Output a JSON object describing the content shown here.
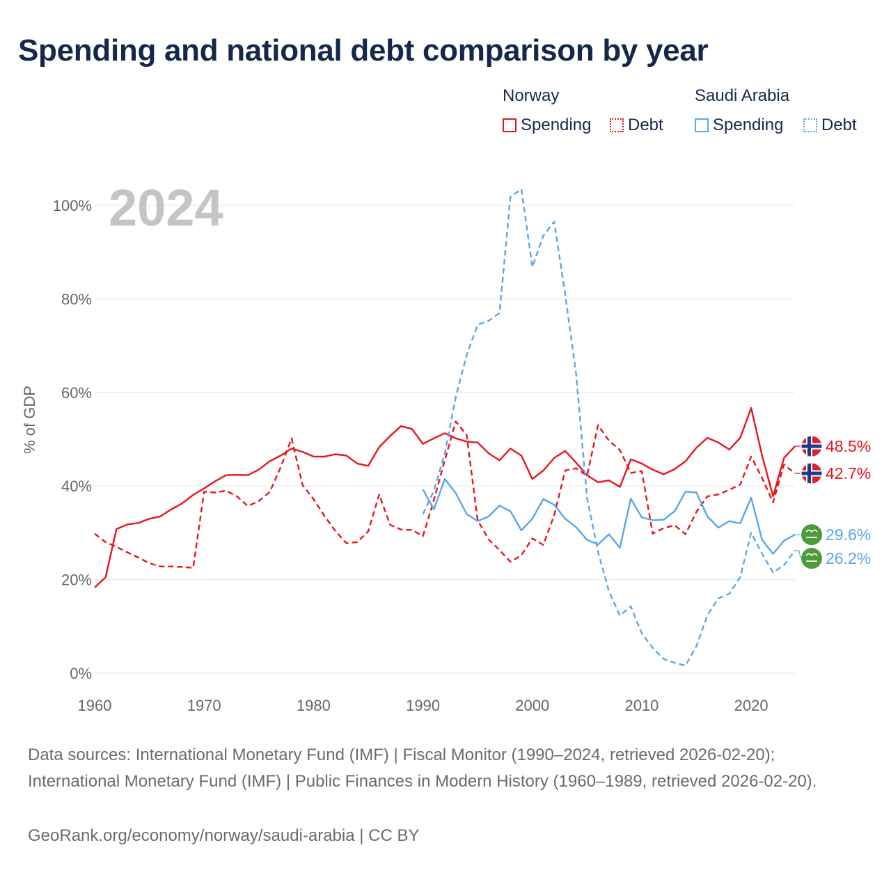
{
  "title": "Spending and national debt comparison by year",
  "legend": {
    "norway": {
      "name": "Norway",
      "spending": "Spending",
      "debt": "Debt"
    },
    "saudi": {
      "name": "Saudi Arabia",
      "spending": "Spending",
      "debt": "Debt"
    }
  },
  "colors": {
    "norway": "#e8141c",
    "saudi": "#5aa6e8",
    "year_watermark": "#c4c4c4",
    "grid": "#e6e6e6",
    "axis_text": "#666666"
  },
  "footer": {
    "sources": "Data sources: International Monetary Fund (IMF) | Fiscal Monitor (1990–2024, retrieved 2026-02-20); International Monetary Fund (IMF) | Public Finances in Modern History (1960–1989, retrieved 2026-02-20).",
    "attribution": "GeoRank.org/economy/norway/saudi-arabia | CC BY"
  },
  "chart_data": {
    "type": "line",
    "year_label": "2024",
    "ylabel": "% of GDP",
    "xlim": [
      1960,
      2024
    ],
    "ylim": [
      0,
      105
    ],
    "x_ticks": [
      1960,
      1970,
      1980,
      1990,
      2000,
      2010,
      2020
    ],
    "y_ticks": [
      0,
      20,
      40,
      60,
      80,
      100
    ],
    "y_tick_labels": [
      "0%",
      "20%",
      "40%",
      "60%",
      "80%",
      "100%"
    ],
    "series": [
      {
        "name": "Norway Spending",
        "country": "norway",
        "style": "solid",
        "start_year": 1960,
        "end_label": "48.5%",
        "values": [
          18.3,
          20.5,
          30.8,
          31.8,
          32.1,
          33.0,
          33.5,
          35.0,
          36.3,
          38.1,
          39.5,
          41.0,
          42.3,
          42.4,
          42.3,
          43.5,
          45.3,
          46.5,
          48.0,
          47.3,
          46.3,
          46.3,
          46.8,
          46.5,
          44.8,
          44.3,
          48.3,
          50.7,
          52.8,
          52.2,
          49.0,
          50.2,
          51.3,
          50.2,
          49.5,
          49.3,
          47.0,
          45.5,
          48.0,
          46.5,
          41.5,
          43.3,
          46.0,
          47.5,
          45.0,
          42.3,
          40.8,
          41.2,
          39.8,
          45.7,
          44.8,
          43.5,
          42.5,
          43.6,
          45.3,
          48.2,
          50.3,
          49.3,
          47.8,
          50.3,
          56.7,
          46.5,
          37.8,
          46.0,
          48.5
        ]
      },
      {
        "name": "Norway Debt",
        "country": "norway",
        "style": "dashed",
        "start_year": 1960,
        "end_label": "42.7%",
        "values": [
          29.8,
          28.0,
          27.0,
          25.8,
          24.7,
          23.5,
          22.8,
          22.8,
          22.7,
          22.5,
          38.8,
          38.6,
          39.0,
          37.8,
          35.7,
          36.8,
          38.7,
          44.0,
          50.2,
          40.2,
          37.2,
          33.6,
          30.4,
          27.8,
          28.0,
          30.3,
          38.2,
          31.7,
          30.7,
          30.6,
          29.3,
          37.0,
          45.5,
          53.8,
          50.9,
          32.7,
          28.6,
          26.3,
          23.8,
          25.2,
          28.8,
          27.4,
          33.8,
          43.3,
          43.8,
          42.2,
          53.0,
          49.7,
          47.7,
          42.8,
          43.2,
          29.8,
          31.0,
          31.6,
          29.7,
          34.5,
          37.8,
          38.2,
          39.2,
          40.3,
          46.3,
          41.7,
          36.5,
          44.6,
          42.7
        ]
      },
      {
        "name": "Saudi Arabia Spending",
        "country": "saudi",
        "style": "solid",
        "start_year": 1990,
        "end_label": "29.6%",
        "values": [
          39.3,
          35.0,
          41.5,
          38.5,
          34.0,
          32.5,
          33.5,
          35.8,
          34.6,
          30.5,
          33.0,
          37.2,
          36.0,
          33.0,
          31.2,
          28.5,
          27.5,
          29.7,
          26.8,
          37.3,
          33.3,
          32.7,
          32.8,
          34.6,
          38.8,
          38.6,
          33.5,
          31.1,
          32.5,
          32.0,
          37.5,
          28.5,
          25.5,
          28.3,
          29.6
        ]
      },
      {
        "name": "Saudi Arabia Debt",
        "country": "saudi",
        "style": "dashed",
        "start_year": 1990,
        "end_label": "26.2%",
        "values": [
          34.0,
          39.0,
          47.0,
          59.0,
          68.0,
          74.5,
          75.3,
          77.0,
          101.8,
          103.5,
          86.8,
          93.5,
          96.5,
          81.0,
          64.0,
          37.5,
          26.0,
          17.5,
          12.3,
          14.3,
          8.5,
          5.4,
          3.0,
          2.2,
          1.6,
          5.8,
          12.4,
          16.0,
          17.0,
          20.5,
          30.0,
          25.5,
          21.5,
          23.1,
          26.2
        ]
      }
    ]
  }
}
